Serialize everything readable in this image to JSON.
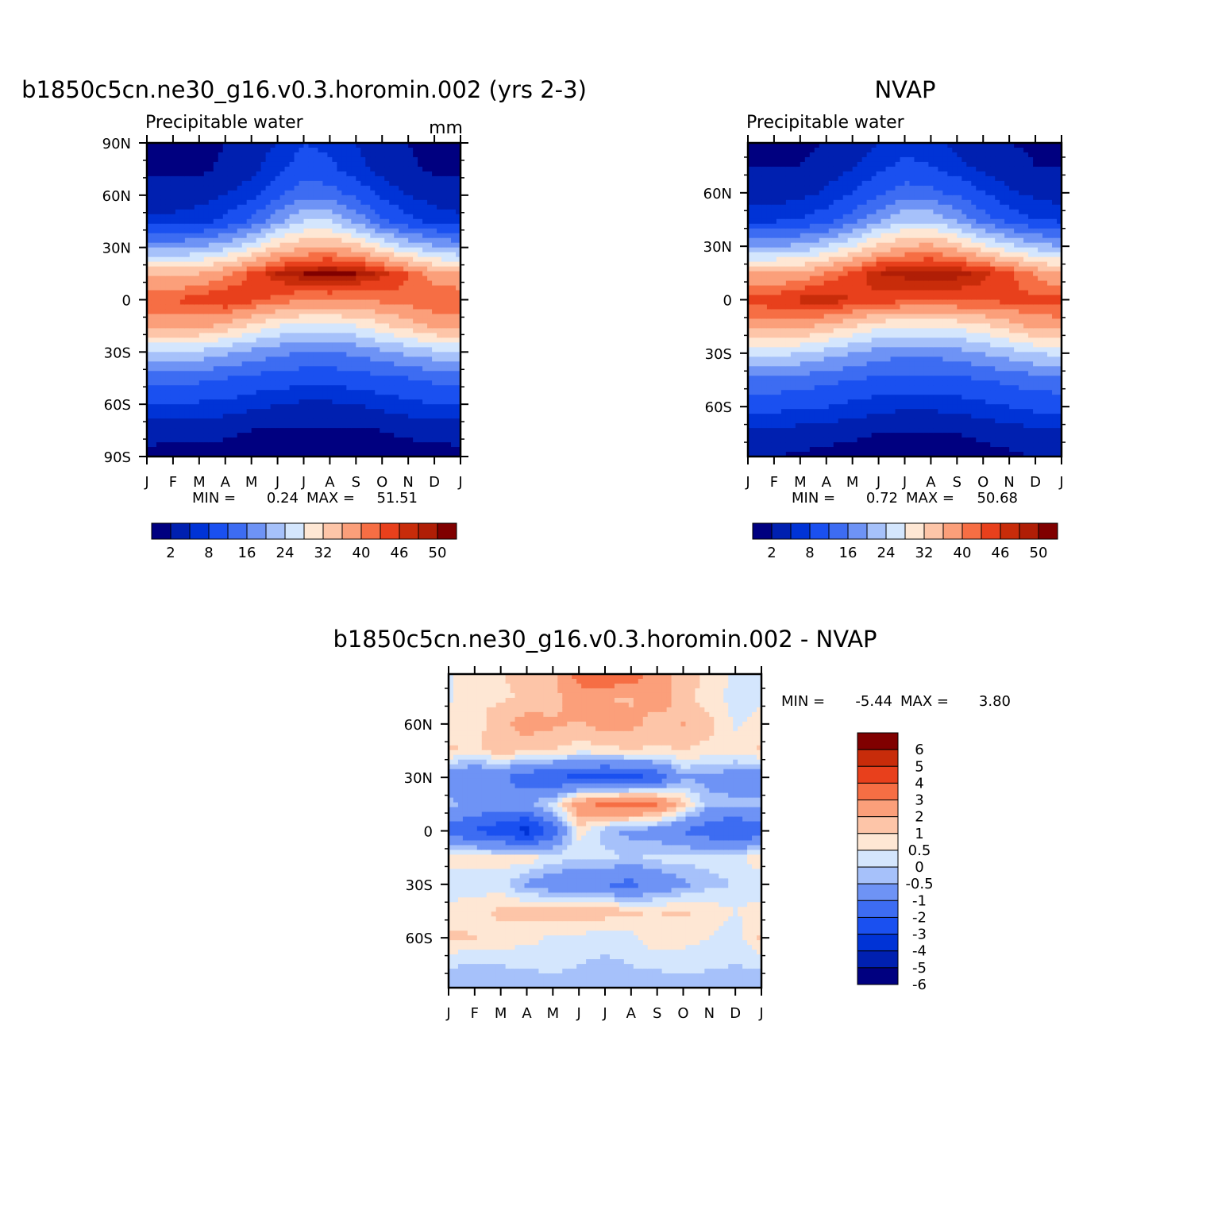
{
  "palette_main": [
    "#000080",
    "#0020B0",
    "#0033D6",
    "#1A50F0",
    "#3D6CF2",
    "#6E93F5",
    "#A6C1FA",
    "#D4E6FD",
    "#FEE7D4",
    "#FDC5A8",
    "#FB9F7A",
    "#F66E44",
    "#E8401C",
    "#C82C0A",
    "#B01E06",
    "#800000"
  ],
  "palette_diff": [
    "#000080",
    "#0020B0",
    "#0033D6",
    "#1A50F0",
    "#3D6CF2",
    "#6E93F5",
    "#A6C1FA",
    "#D4E6FD",
    "#FEE7D4",
    "#FDC5A8",
    "#FB9F7A",
    "#F66E44",
    "#E8401C",
    "#C82C0A",
    "#800000"
  ],
  "months": [
    "J",
    "F",
    "M",
    "A",
    "M",
    "J",
    "J",
    "A",
    "S",
    "O",
    "N",
    "D",
    "J"
  ],
  "chart_data": [
    {
      "type": "heatmap",
      "title": "b1850c5cn.ne30_g16.v0.3.horomin.002 (yrs 2-3)",
      "subtitle": "Precipitable water",
      "units": "mm",
      "x_ticks": [
        "J",
        "F",
        "M",
        "A",
        "M",
        "J",
        "J",
        "A",
        "S",
        "O",
        "N",
        "D",
        "J"
      ],
      "y_ticks": [
        "90N",
        "60N",
        "30N",
        "0",
        "30S",
        "60S",
        "90S"
      ],
      "ylim": [
        -90,
        90
      ],
      "stats": {
        "min_label": "MIN =",
        "min": "0.24",
        "max_label": "MAX =",
        "max": "51.51"
      },
      "colorbar_labels": [
        "2",
        "8",
        "16",
        "24",
        "32",
        "40",
        "46",
        "50"
      ],
      "field": {
        "x": [
          0,
          1,
          2,
          3,
          4,
          5,
          6,
          7,
          8,
          9,
          10,
          11,
          12
        ],
        "y": [
          -90,
          -75,
          -60,
          -45,
          -30,
          -15,
          0,
          15,
          30,
          45,
          60,
          75,
          90
        ],
        "z": [
          [
            1.2,
            1.1,
            1.0,
            1.0,
            0.6,
            0.4,
            0.3,
            0.3,
            0.4,
            0.7,
            1.0,
            1.1,
            1.2
          ],
          [
            3,
            3,
            3,
            2.5,
            2,
            1.5,
            1.5,
            1.5,
            1.5,
            2,
            2.5,
            3,
            3
          ],
          [
            8,
            8,
            7.5,
            7,
            6,
            5,
            4.5,
            4.5,
            5,
            6,
            7,
            8,
            8
          ],
          [
            14,
            14,
            13,
            12,
            11,
            10,
            9.5,
            9.5,
            10,
            11,
            12,
            13,
            14
          ],
          [
            24,
            24,
            23,
            21,
            19,
            17,
            16,
            16,
            17,
            19,
            21,
            23,
            24
          ],
          [
            38,
            38,
            37,
            35,
            31,
            28,
            27,
            27,
            28,
            31,
            34,
            37,
            38
          ],
          [
            43,
            43,
            45,
            46,
            44,
            42,
            40,
            40,
            40,
            41,
            42,
            43,
            43
          ],
          [
            36,
            35,
            36,
            39,
            44,
            48,
            50,
            51,
            50,
            47,
            43,
            38,
            36
          ],
          [
            19,
            19,
            20,
            23,
            27,
            33,
            36,
            37,
            34,
            29,
            24,
            21,
            19
          ],
          [
            6,
            6,
            7,
            9,
            13,
            19,
            24,
            24,
            19,
            13,
            9,
            7,
            6
          ],
          [
            3,
            3,
            3.5,
            5,
            7,
            11,
            15,
            14,
            11,
            7,
            5,
            3.5,
            3
          ],
          [
            1.5,
            1.5,
            1.5,
            2.5,
            4,
            7,
            10,
            9,
            6,
            4,
            2.5,
            1.5,
            1.5
          ],
          [
            1,
            1,
            1,
            2,
            3,
            5,
            8,
            7,
            5,
            3,
            2,
            1,
            1
          ]
        ]
      }
    },
    {
      "type": "heatmap",
      "title": "NVAP",
      "subtitle": "Precipitable water",
      "x_ticks": [
        "J",
        "F",
        "M",
        "A",
        "M",
        "J",
        "J",
        "A",
        "S",
        "O",
        "N",
        "D",
        "J"
      ],
      "y_ticks": [
        "60N",
        "30N",
        "0",
        "30S",
        "60S"
      ],
      "ylim": [
        -88,
        88
      ],
      "stats": {
        "min_label": "MIN =",
        "min": "0.72",
        "max_label": "MAX =",
        "max": "50.68"
      },
      "colorbar_labels": [
        "2",
        "8",
        "16",
        "24",
        "32",
        "40",
        "46",
        "50"
      ],
      "field": {
        "x": [
          0,
          1,
          2,
          3,
          4,
          5,
          6,
          7,
          8,
          9,
          10,
          11,
          12
        ],
        "y": [
          -88,
          -75,
          -60,
          -45,
          -30,
          -15,
          0,
          15,
          30,
          45,
          60,
          75,
          88
        ],
        "z": [
          [
            2,
            2,
            1.5,
            1.2,
            1,
            0.8,
            0.8,
            0.8,
            1,
            1.2,
            1.5,
            2,
            2
          ],
          [
            4,
            4,
            3.5,
            3,
            2.5,
            2,
            2,
            2,
            2,
            2.5,
            3,
            4,
            4
          ],
          [
            9,
            9,
            8.5,
            8,
            7,
            6,
            5.5,
            5.5,
            6,
            7,
            8,
            9,
            9
          ],
          [
            15,
            15,
            14,
            13,
            12,
            11,
            10.5,
            10.5,
            11,
            12,
            13,
            14,
            15
          ],
          [
            25,
            25,
            24,
            22,
            20,
            18,
            17,
            17,
            18,
            20,
            22,
            24,
            25
          ],
          [
            38,
            38,
            37,
            35,
            32,
            29,
            28,
            28,
            29,
            31,
            34,
            37,
            38
          ],
          [
            44,
            45,
            47,
            48,
            46,
            45,
            44,
            44,
            44,
            44,
            44,
            44,
            44
          ],
          [
            36,
            36,
            37,
            40,
            44,
            48,
            49,
            50,
            49,
            47,
            44,
            39,
            36
          ],
          [
            20,
            20,
            21,
            24,
            28,
            33,
            36,
            37,
            34,
            29,
            25,
            22,
            20
          ],
          [
            7,
            7,
            8,
            10,
            14,
            19,
            23,
            23,
            19,
            14,
            10,
            8,
            7
          ],
          [
            3.5,
            3.5,
            4,
            5.5,
            8,
            11,
            14,
            13,
            11,
            8,
            5.5,
            4,
            3.5
          ],
          [
            2,
            2,
            2,
            3,
            4.5,
            7,
            9,
            8,
            6,
            4,
            3,
            2,
            2
          ],
          [
            1.5,
            1.5,
            1.5,
            2,
            3,
            5,
            7,
            6,
            4,
            3,
            2,
            1.5,
            1.5
          ]
        ]
      }
    },
    {
      "type": "heatmap",
      "title": "b1850c5cn.ne30_g16.v0.3.horomin.002 - NVAP",
      "x_ticks": [
        "J",
        "F",
        "M",
        "A",
        "M",
        "J",
        "J",
        "A",
        "S",
        "O",
        "N",
        "D",
        "J"
      ],
      "y_ticks": [
        "60N",
        "30N",
        "0",
        "30S",
        "60S"
      ],
      "ylim": [
        -88,
        88
      ],
      "stats": {
        "min_label": "MIN =",
        "min": "-5.44",
        "max_label": "MAX =",
        "max": "3.80"
      },
      "colorbar_labels": [
        "6",
        "5",
        "4",
        "3",
        "2",
        "1",
        "0.5",
        "0",
        "-0.5",
        "-1",
        "-2",
        "-3",
        "-4",
        "-5",
        "-6"
      ],
      "levels": [
        -6,
        -5,
        -4,
        -3,
        -2,
        -1,
        -0.5,
        0,
        0.5,
        1,
        2,
        3,
        4,
        5,
        6
      ],
      "field": {
        "x": [
          0,
          1,
          2,
          3,
          4,
          5,
          6,
          7,
          8,
          9,
          10,
          11,
          12
        ],
        "y": [
          -88,
          -75,
          -60,
          -45,
          -30,
          -15,
          0,
          15,
          30,
          45,
          60,
          75,
          88
        ],
        "z": [
          [
            -0.8,
            -0.8,
            -0.8,
            -0.8,
            -0.7,
            -0.6,
            -0.6,
            -0.7,
            -0.8,
            -0.8,
            -0.8,
            -0.8,
            -0.8
          ],
          [
            -0.4,
            -0.6,
            -0.5,
            -0.4,
            -0.4,
            -0.5,
            -0.6,
            -0.5,
            -0.4,
            -0.3,
            -0.4,
            -0.5,
            -0.4
          ],
          [
            0.6,
            0.5,
            0.3,
            0.2,
            -0.1,
            -0.2,
            -0.3,
            -0.2,
            0.4,
            0.2,
            0,
            -0.3,
            0.6
          ],
          [
            0.3,
            0.4,
            0.6,
            0.7,
            0.9,
            1.1,
            0.8,
            0.6,
            0.5,
            0.6,
            0.3,
            0,
            0.3
          ],
          [
            -0.5,
            -0.4,
            -0.2,
            -1.2,
            -1.6,
            -1.8,
            -2.1,
            -2.3,
            -1.8,
            -1.2,
            -0.6,
            -0.5,
            -0.5
          ],
          [
            0.5,
            0.3,
            0.2,
            0.4,
            -0.2,
            -0.4,
            -0.3,
            -0.6,
            -0.3,
            -0.2,
            -0.4,
            -0.3,
            0.5
          ],
          [
            -2.5,
            -3.1,
            -3.6,
            -4.6,
            -2.5,
            0.3,
            -0.8,
            -1.2,
            -1.4,
            -2.1,
            -2.6,
            -3.2,
            -2.5
          ],
          [
            -0.8,
            -1.2,
            -1.6,
            -1.2,
            -0.2,
            1.6,
            2.3,
            2.6,
            2.2,
            0.6,
            -0.8,
            -0.8,
            -0.8
          ],
          [
            -1.7,
            -2.1,
            -1.8,
            -2.6,
            -3.1,
            -3.2,
            -3.6,
            -3.4,
            -2.8,
            -1.1,
            -1.2,
            -1.5,
            -1.7
          ],
          [
            0.6,
            0.4,
            0.8,
            0.6,
            0.5,
            0.2,
            0.3,
            0.5,
            0.4,
            0.5,
            0.3,
            0.2,
            0.6
          ],
          [
            0.2,
            0.3,
            0.8,
            1.3,
            1.1,
            0.9,
            1.3,
            1.2,
            0.7,
            1.0,
            0.7,
            -0.1,
            0.2
          ],
          [
            -0.1,
            0.5,
            0.4,
            0.6,
            0.7,
            1.6,
            1.0,
            0.9,
            1.4,
            0.7,
            0.2,
            -0.2,
            -0.1
          ],
          [
            -0.1,
            0.3,
            0.5,
            0.6,
            0.8,
            2.4,
            3.2,
            2.8,
            1.2,
            0.8,
            0.4,
            -0.1,
            -0.1
          ]
        ]
      }
    }
  ]
}
